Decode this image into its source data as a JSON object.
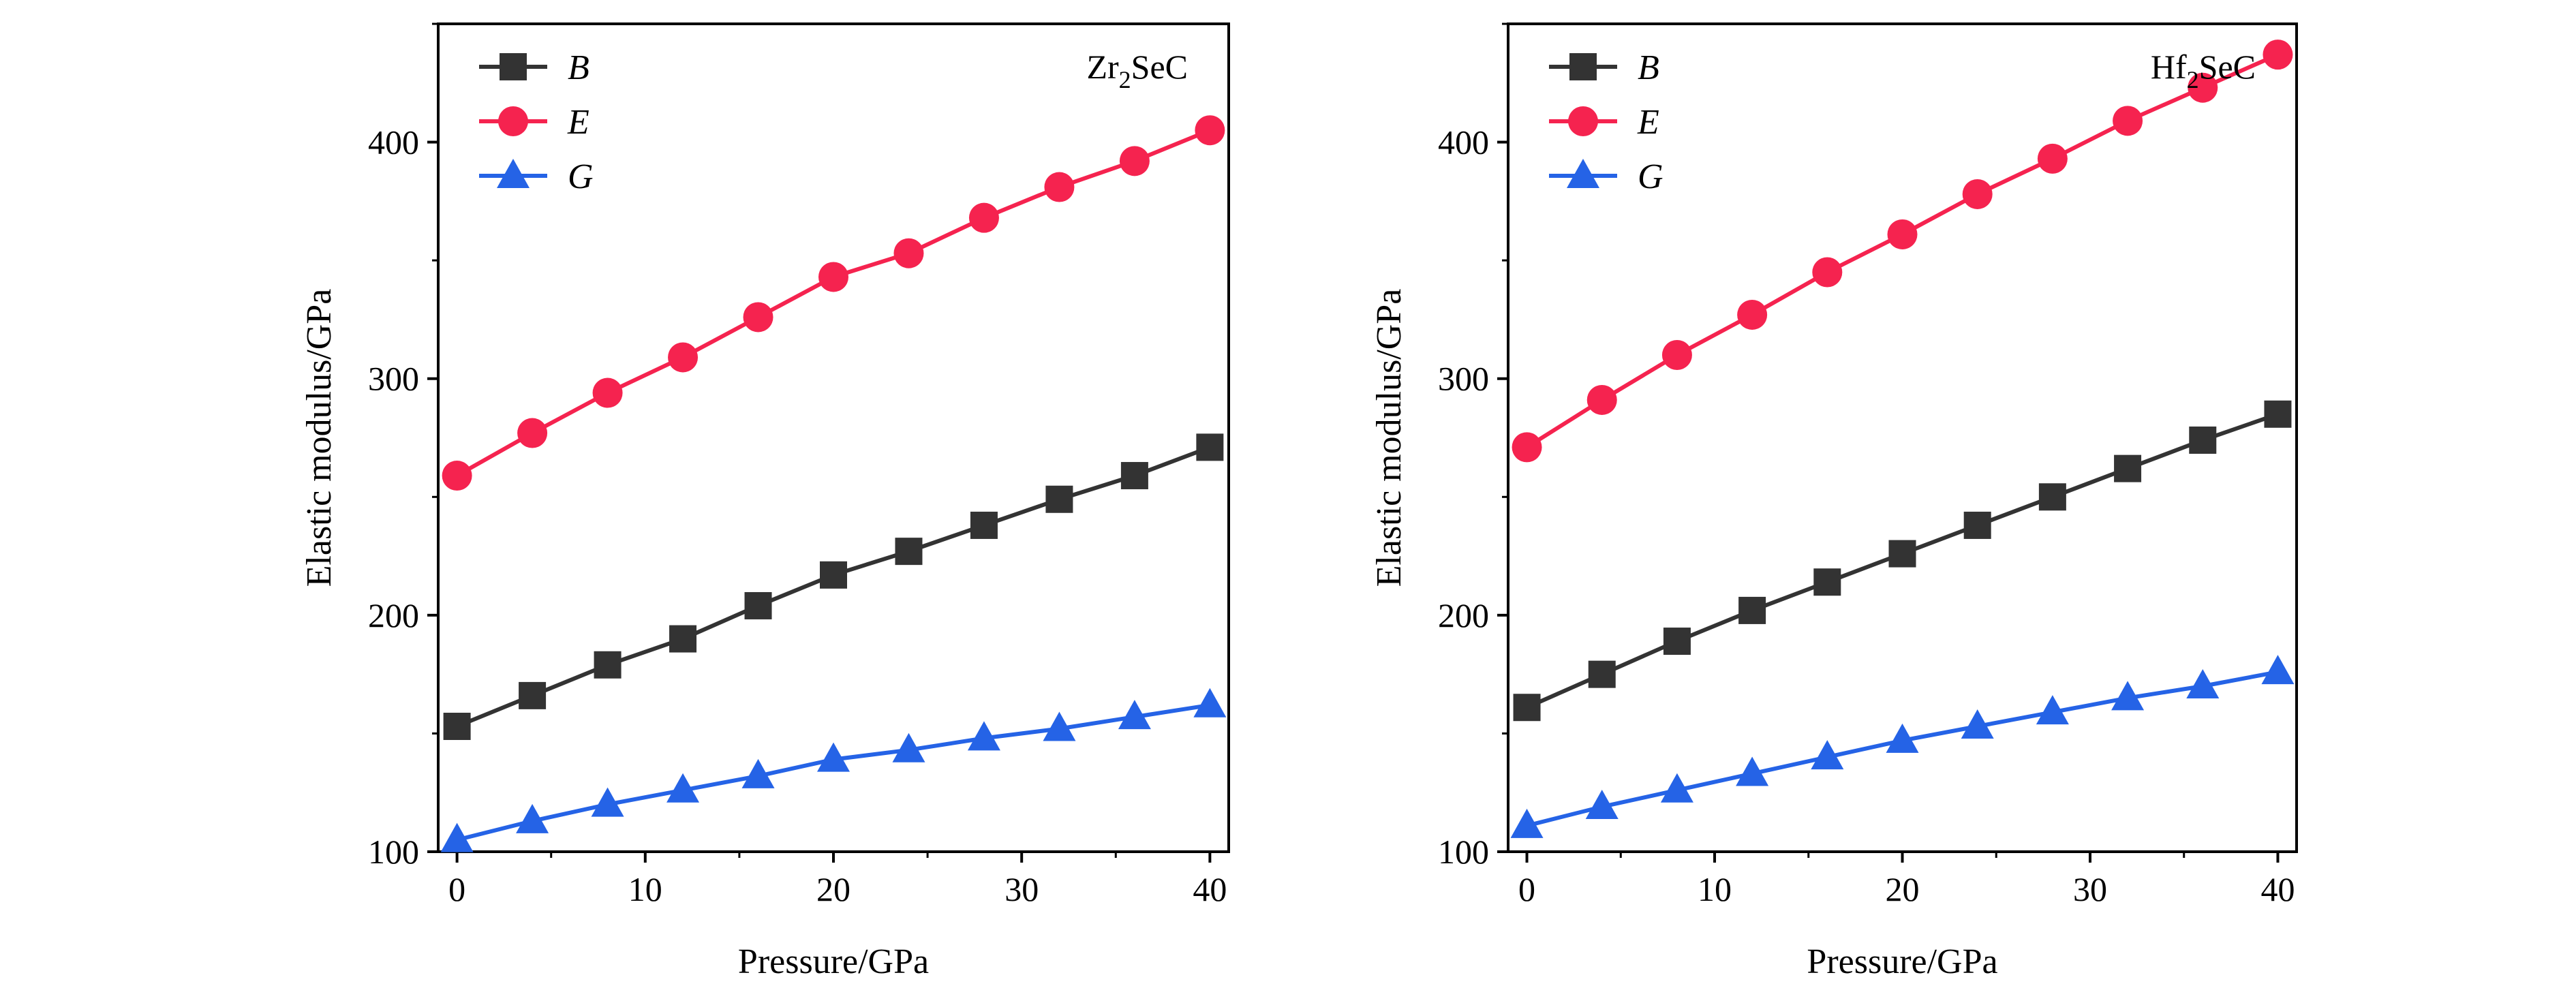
{
  "figure": {
    "background": "#ffffff",
    "series_colors": {
      "B": "#333333",
      "E": "#f5234f",
      "G": "#2563e6"
    },
    "series_markers": {
      "B": "square",
      "E": "circle",
      "G": "triangle"
    }
  },
  "chart_data": [
    {
      "type": "line",
      "compound_label": {
        "base": "Zr",
        "subscript": "2",
        "suffix": "SeC"
      },
      "xlabel": "Pressure/GPa",
      "ylabel": "Elastic modulus/GPa",
      "xlim": [
        -1,
        41
      ],
      "ylim": [
        100,
        450
      ],
      "xticks": [
        0,
        10,
        20,
        30,
        40
      ],
      "yticks": [
        100,
        200,
        300,
        400
      ],
      "grid": false,
      "legend_position": "top-left",
      "x": [
        0,
        4,
        8,
        12,
        16,
        20,
        24,
        28,
        32,
        36,
        40
      ],
      "series": [
        {
          "name": "B",
          "values": [
            153,
            166,
            179,
            190,
            204,
            217,
            227,
            238,
            249,
            259,
            271
          ]
        },
        {
          "name": "E",
          "values": [
            259,
            277,
            294,
            309,
            326,
            343,
            353,
            368,
            381,
            392,
            405
          ]
        },
        {
          "name": "G",
          "values": [
            105,
            113,
            120,
            126,
            132,
            139,
            143,
            148,
            152,
            157,
            162
          ]
        }
      ]
    },
    {
      "type": "line",
      "compound_label": {
        "base": "Hf",
        "subscript": "2",
        "suffix": "SeC"
      },
      "xlabel": "Pressure/GPa",
      "ylabel": "Elastic modulus/GPa",
      "xlim": [
        -1,
        41
      ],
      "ylim": [
        100,
        450
      ],
      "xticks": [
        0,
        10,
        20,
        30,
        40
      ],
      "yticks": [
        100,
        200,
        300,
        400
      ],
      "grid": false,
      "legend_position": "top-left",
      "x": [
        0,
        4,
        8,
        12,
        16,
        20,
        24,
        28,
        32,
        36,
        40
      ],
      "series": [
        {
          "name": "B",
          "values": [
            161,
            175,
            189,
            202,
            214,
            226,
            238,
            250,
            262,
            274,
            285
          ]
        },
        {
          "name": "E",
          "values": [
            271,
            291,
            310,
            327,
            345,
            361,
            378,
            393,
            409,
            423,
            437
          ]
        },
        {
          "name": "G",
          "values": [
            111,
            119,
            126,
            133,
            140,
            147,
            153,
            159,
            165,
            170,
            176
          ]
        }
      ]
    }
  ]
}
